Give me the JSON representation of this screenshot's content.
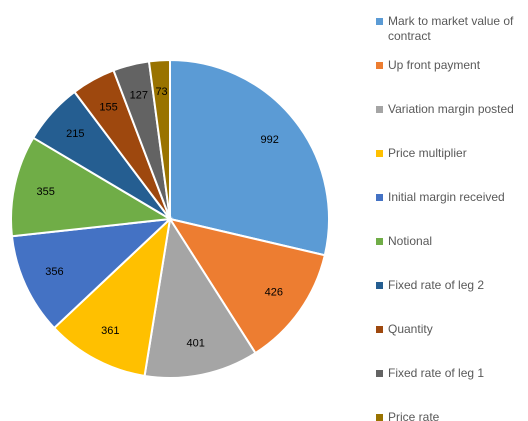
{
  "chart_data": {
    "type": "pie",
    "categories": [
      "Mark to market value of contract",
      "Up front payment",
      "Variation margin posted",
      "Price multiplier",
      "Initial margin received",
      "Notional",
      "Fixed rate of leg 2",
      "Quantity",
      "Fixed rate of leg 1",
      "Price rate"
    ],
    "values": [
      992,
      426,
      401,
      361,
      356,
      355,
      215,
      155,
      127,
      73
    ],
    "colors": [
      "#5b9bd5",
      "#ed7d31",
      "#a5a5a5",
      "#ffc000",
      "#4472c4",
      "#70ad47",
      "#255e91",
      "#9e480e",
      "#636363",
      "#997300"
    ],
    "legend": "right"
  }
}
